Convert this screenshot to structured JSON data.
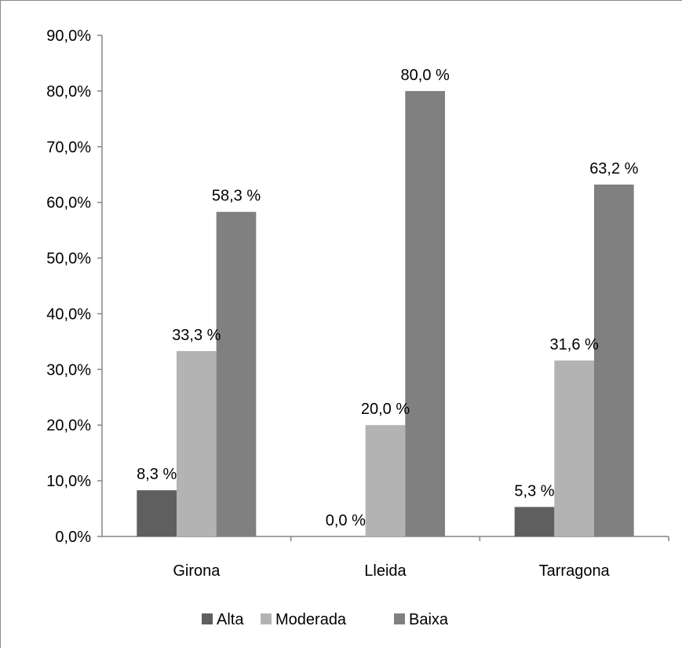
{
  "chart_data": {
    "type": "bar",
    "categories": [
      "Girona",
      "Lleida",
      "Tarragona"
    ],
    "series": [
      {
        "name": "Alta",
        "values": [
          8.3,
          0.0,
          5.3
        ],
        "labels": [
          "8,3 %",
          "0,0 %",
          "5,3 %"
        ],
        "color": "#5f5f5f"
      },
      {
        "name": "Moderada",
        "values": [
          33.3,
          20.0,
          31.6
        ],
        "labels": [
          "33,3 %",
          "20,0 %",
          "31,6 %"
        ],
        "color": "#b3b3b3"
      },
      {
        "name": "Baixa",
        "values": [
          58.3,
          80.0,
          63.2
        ],
        "labels": [
          "58,3 %",
          "80,0 %",
          "63,2 %"
        ],
        "color": "#808080"
      }
    ],
    "ylim": [
      0,
      90
    ],
    "yticks": [
      0,
      10,
      20,
      30,
      40,
      50,
      60,
      70,
      80,
      90
    ],
    "ytick_labels": [
      "0,0%",
      "10,0%",
      "20,0%",
      "30,0%",
      "40,0%",
      "50,0%",
      "60,0%",
      "70,0%",
      "80,0%",
      "90,0%"
    ],
    "grid": false,
    "legend_position": "bottom",
    "title": "",
    "xlabel": "",
    "ylabel": ""
  }
}
